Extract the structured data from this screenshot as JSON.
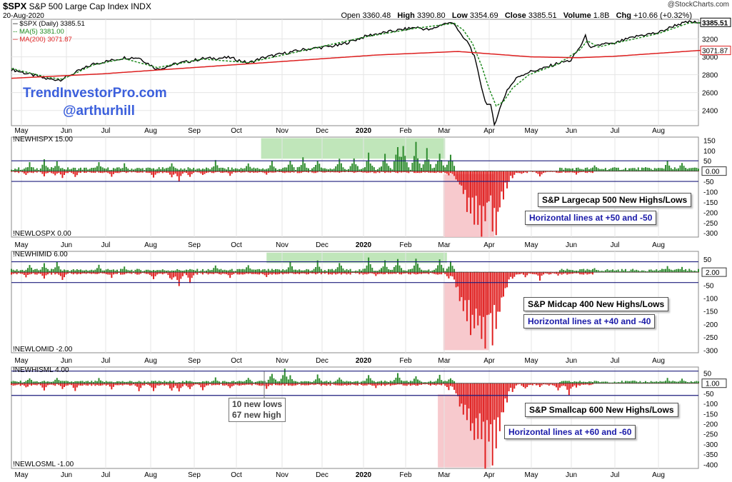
{
  "header": {
    "symbol": "$SPX",
    "name": "S&P 500 Large Cap Index",
    "exchange": "INDX",
    "date": "20-Aug-2020",
    "source": "@StockCharts.com",
    "open_label": "Open",
    "open": "3360.48",
    "high_label": "High",
    "high": "3390.80",
    "low_label": "Low",
    "low": "3354.69",
    "close_label": "Close",
    "close": "3385.51",
    "volume_label": "Volume",
    "volume": "1.8B",
    "chg_label": "Chg",
    "chg": "+10.66 (+0.32%)"
  },
  "legend": {
    "price": "$SPX (Daily) 3385.51",
    "ma5": "MA(5) 3381.00",
    "ma200": "MA(200) 3071.87"
  },
  "branding": {
    "site": "TrendInvestorPro.com",
    "handle": "@arthurhill"
  },
  "colors": {
    "price": "#000000",
    "ma5": "#1f8a1f",
    "ma200": "#dd1f1f",
    "highs_bar": "#2e8b2e",
    "lows_bar": "#e02020",
    "green_zone": "#b9e3b2",
    "red_zone": "#f6c3c8",
    "ref_line": "#1c1c7c",
    "annotation_blue": "#1a1aa8",
    "brand": "#3b5fdc"
  },
  "panel_labels": {
    "spx_highs": "!NEWHISPX 15.00",
    "spx_lows": "!NEWLOSPX 0.00",
    "mid_highs": "!NEWHIMID 6.00",
    "mid_lows": "!NEWLOMID -2.00",
    "sml_highs": "!NEWHISML 4.00",
    "sml_lows": "!NEWLOSML -1.00"
  },
  "annotations": {
    "spx_title": "S&P Largecap 500 New Highs/Lows",
    "spx_lines": "Horizontal lines at +50 and -50",
    "mid_title": "S&P Midcap 400  New Highs/Lows",
    "mid_lines": "Horizontal lines at +40 and -40",
    "sml_title": "S&P Smallcap 600  New Highs/Lows",
    "sml_lines": "Horizontal lines at +60 and -60",
    "callout_lows": "10 new lows",
    "callout_highs": "67 new high"
  },
  "chart_data": [
    {
      "type": "line",
      "x_ticks": [
        "May",
        "Jun",
        "Jul",
        "Aug",
        "Sep",
        "Oct",
        "Nov",
        "Dec",
        "2020",
        "Feb",
        "Mar",
        "Apr",
        "May",
        "Jun",
        "Jul",
        "Aug"
      ],
      "y_ticks": [
        2400,
        2600,
        2800,
        3000,
        3200
      ],
      "ylim": [
        2230,
        3420
      ],
      "last_values": {
        "price": "3385.51",
        "ma200": "3071.87"
      },
      "series": [
        {
          "name": "$SPX (Daily)",
          "key": "price",
          "anchors": [
            [
              0,
              2860
            ],
            [
              20,
              2750
            ],
            [
              27,
              2745
            ],
            [
              45,
              2920
            ],
            [
              62,
              2990
            ],
            [
              70,
              2990
            ],
            [
              80,
              2860
            ],
            [
              90,
              2920
            ],
            [
              105,
              2980
            ],
            [
              120,
              2990
            ],
            [
              130,
              2930
            ],
            [
              138,
              2990
            ],
            [
              160,
              3080
            ],
            [
              180,
              3130
            ],
            [
              196,
              3240
            ],
            [
              210,
              3290
            ],
            [
              222,
              3330
            ],
            [
              230,
              3300
            ],
            [
              237,
              3370
            ],
            [
              243,
              3380
            ],
            [
              247,
              3230
            ],
            [
              251,
              3150
            ],
            [
              254,
              3000
            ],
            [
              257,
              2750
            ],
            [
              260,
              2500
            ],
            [
              263,
              2450
            ],
            [
              265,
              2240
            ],
            [
              268,
              2420
            ],
            [
              272,
              2630
            ],
            [
              278,
              2780
            ],
            [
              284,
              2830
            ],
            [
              292,
              2870
            ],
            [
              300,
              2930
            ],
            [
              307,
              2960
            ],
            [
              312,
              3110
            ],
            [
              315,
              3230
            ],
            [
              318,
              3090
            ],
            [
              325,
              3150
            ],
            [
              330,
              3140
            ],
            [
              335,
              3180
            ],
            [
              345,
              3240
            ],
            [
              355,
              3270
            ],
            [
              365,
              3360
            ],
            [
              372,
              3390
            ],
            [
              378,
              3380
            ]
          ]
        },
        {
          "name": "MA(5)",
          "key": "ma5",
          "anchors": [
            [
              0,
              2870
            ],
            [
              20,
              2770
            ],
            [
              28,
              2750
            ],
            [
              45,
              2910
            ],
            [
              62,
              2980
            ],
            [
              80,
              2880
            ],
            [
              105,
              2975
            ],
            [
              130,
              2935
            ],
            [
              160,
              3070
            ],
            [
              196,
              3230
            ],
            [
              222,
              3320
            ],
            [
              243,
              3375
            ],
            [
              248,
              3300
            ],
            [
              253,
              3150
            ],
            [
              258,
              2900
            ],
            [
              262,
              2650
            ],
            [
              266,
              2450
            ],
            [
              270,
              2500
            ],
            [
              275,
              2650
            ],
            [
              284,
              2800
            ],
            [
              300,
              2920
            ],
            [
              312,
              3080
            ],
            [
              316,
              3180
            ],
            [
              322,
              3110
            ],
            [
              335,
              3170
            ],
            [
              355,
              3260
            ],
            [
              372,
              3380
            ],
            [
              378,
              3381
            ]
          ]
        },
        {
          "name": "MA(200)",
          "key": "ma200",
          "anchors": [
            [
              0,
              2760
            ],
            [
              50,
              2810
            ],
            [
              100,
              2880
            ],
            [
              150,
              2950
            ],
            [
              200,
              3020
            ],
            [
              245,
              3060
            ],
            [
              265,
              3030
            ],
            [
              285,
              3000
            ],
            [
              310,
              2990
            ],
            [
              330,
              3005
            ],
            [
              355,
              3040
            ],
            [
              378,
              3072
            ]
          ]
        }
      ]
    },
    {
      "type": "bar",
      "name": "S&P Largecap 500 New Highs/Lows",
      "y_ticks": [
        150,
        100,
        50,
        -50,
        -100,
        -150,
        -200,
        -250,
        -300
      ],
      "ylim": [
        -320,
        165
      ],
      "reference_lines": [
        50,
        -50
      ],
      "last_value": "0.00",
      "highs": {
        "name": "!NEWHISPX",
        "base": 12,
        "peaks": [
          [
            10,
            40
          ],
          [
            18,
            50
          ],
          [
            25,
            55
          ],
          [
            48,
            40
          ],
          [
            62,
            35
          ],
          [
            88,
            38
          ],
          [
            112,
            45
          ],
          [
            130,
            42
          ],
          [
            143,
            45
          ],
          [
            153,
            55
          ],
          [
            160,
            60
          ],
          [
            168,
            55
          ],
          [
            180,
            65
          ],
          [
            188,
            70
          ],
          [
            196,
            75
          ],
          [
            205,
            85
          ],
          [
            212,
            140
          ],
          [
            215,
            130
          ],
          [
            222,
            125
          ],
          [
            228,
            110
          ],
          [
            235,
            100
          ],
          [
            241,
            90
          ],
          [
            320,
            30
          ],
          [
            360,
            50
          ],
          [
            368,
            45
          ]
        ],
        "zero_ranges": [
          [
            244,
            300
          ]
        ]
      },
      "lows": {
        "name": "!NEWLOSPX",
        "base": -6,
        "peaks": [
          [
            8,
            -20
          ],
          [
            18,
            -22
          ],
          [
            24,
            -25
          ],
          [
            28,
            -35
          ],
          [
            35,
            -30
          ],
          [
            55,
            -25
          ],
          [
            78,
            -30
          ],
          [
            88,
            -30
          ],
          [
            92,
            -45
          ],
          [
            98,
            -30
          ],
          [
            105,
            -22
          ],
          [
            120,
            -20
          ],
          [
            140,
            -18
          ],
          [
            200,
            -10
          ],
          [
            240,
            -20
          ],
          [
            244,
            -45
          ],
          [
            246,
            -80
          ],
          [
            248,
            -120
          ],
          [
            250,
            -180
          ],
          [
            252,
            -200
          ],
          [
            254,
            -270
          ],
          [
            256,
            -220
          ],
          [
            258,
            -310
          ],
          [
            260,
            -290
          ],
          [
            262,
            -150
          ],
          [
            264,
            -250
          ],
          [
            266,
            -300
          ],
          [
            268,
            -180
          ],
          [
            270,
            -120
          ],
          [
            272,
            -80
          ],
          [
            275,
            -30
          ],
          [
            280,
            -15
          ],
          [
            290,
            -25
          ],
          [
            300,
            -10
          ],
          [
            310,
            -15
          ]
        ],
        "zero_ranges": [
          [
            320,
            378
          ]
        ]
      }
    },
    {
      "type": "bar",
      "name": "S&P Midcap 400 New Highs/Lows",
      "y_ticks": [
        50,
        -50,
        -100,
        -150,
        -200,
        -250,
        -300
      ],
      "ylim": [
        -310,
        80
      ],
      "reference_lines": [
        40,
        -40
      ],
      "last_value": "2.00",
      "highs": {
        "name": "!NEWHIMID",
        "base": 8,
        "peaks": [
          [
            10,
            30
          ],
          [
            18,
            35
          ],
          [
            25,
            38
          ],
          [
            48,
            25
          ],
          [
            62,
            22
          ],
          [
            112,
            25
          ],
          [
            130,
            30
          ],
          [
            153,
            35
          ],
          [
            168,
            40
          ],
          [
            180,
            42
          ],
          [
            196,
            50
          ],
          [
            205,
            45
          ],
          [
            212,
            55
          ],
          [
            222,
            50
          ],
          [
            235,
            45
          ],
          [
            241,
            40
          ],
          [
            320,
            15
          ],
          [
            360,
            20
          ],
          [
            368,
            18
          ]
        ],
        "zero_ranges": [
          [
            244,
            300
          ]
        ]
      },
      "lows": {
        "name": "!NEWLOMID",
        "base": -6,
        "peaks": [
          [
            8,
            -20
          ],
          [
            18,
            -25
          ],
          [
            28,
            -30
          ],
          [
            55,
            -20
          ],
          [
            78,
            -30
          ],
          [
            88,
            -35
          ],
          [
            92,
            -55
          ],
          [
            98,
            -35
          ],
          [
            120,
            -22
          ],
          [
            140,
            -20
          ],
          [
            200,
            -15
          ],
          [
            240,
            -25
          ],
          [
            244,
            -50
          ],
          [
            246,
            -100
          ],
          [
            248,
            -150
          ],
          [
            250,
            -200
          ],
          [
            252,
            -230
          ],
          [
            254,
            -260
          ],
          [
            256,
            -180
          ],
          [
            258,
            -290
          ],
          [
            260,
            -300
          ],
          [
            262,
            -200
          ],
          [
            264,
            -240
          ],
          [
            266,
            -270
          ],
          [
            268,
            -150
          ],
          [
            270,
            -100
          ],
          [
            272,
            -60
          ],
          [
            275,
            -30
          ],
          [
            282,
            -20
          ],
          [
            290,
            -30
          ],
          [
            300,
            -12
          ]
        ],
        "zero_ranges": [
          [
            320,
            378
          ]
        ]
      }
    },
    {
      "type": "bar",
      "name": "S&P Smallcap 600 New Highs/Lows",
      "y_ticks": [
        50,
        -50,
        -100,
        -150,
        -200,
        -250,
        -300,
        -350,
        -400
      ],
      "ylim": [
        -420,
        80
      ],
      "reference_lines": [
        60,
        -60
      ],
      "last_value": "1.00",
      "highs": {
        "name": "!NEWHISML",
        "base": 8,
        "peaks": [
          [
            10,
            25
          ],
          [
            25,
            30
          ],
          [
            48,
            22
          ],
          [
            112,
            25
          ],
          [
            130,
            30
          ],
          [
            143,
            55
          ],
          [
            150,
            67
          ],
          [
            153,
            40
          ],
          [
            168,
            38
          ],
          [
            180,
            35
          ],
          [
            196,
            40
          ],
          [
            212,
            45
          ],
          [
            222,
            40
          ],
          [
            235,
            35
          ],
          [
            241,
            30
          ],
          [
            320,
            10
          ],
          [
            360,
            25
          ],
          [
            368,
            20
          ]
        ],
        "zero_ranges": [
          [
            244,
            300
          ]
        ]
      },
      "lows": {
        "name": "!NEWLOSML",
        "base": -8,
        "peaks": [
          [
            8,
            -25
          ],
          [
            18,
            -40
          ],
          [
            28,
            -30
          ],
          [
            35,
            -35
          ],
          [
            55,
            -30
          ],
          [
            70,
            -35
          ],
          [
            78,
            -40
          ],
          [
            88,
            -40
          ],
          [
            92,
            -45
          ],
          [
            98,
            -35
          ],
          [
            105,
            -30
          ],
          [
            120,
            -28
          ],
          [
            140,
            -25
          ],
          [
            150,
            -10
          ],
          [
            200,
            -20
          ],
          [
            240,
            -30
          ],
          [
            244,
            -60
          ],
          [
            246,
            -110
          ],
          [
            248,
            -160
          ],
          [
            250,
            -200
          ],
          [
            252,
            -260
          ],
          [
            254,
            -300
          ],
          [
            256,
            -250
          ],
          [
            258,
            -330
          ],
          [
            260,
            -410
          ],
          [
            262,
            -300
          ],
          [
            264,
            -380
          ],
          [
            266,
            -330
          ],
          [
            268,
            -250
          ],
          [
            270,
            -150
          ],
          [
            272,
            -90
          ],
          [
            275,
            -45
          ],
          [
            282,
            -30
          ],
          [
            290,
            -20
          ],
          [
            300,
            -40
          ],
          [
            306,
            -50
          ],
          [
            310,
            -20
          ]
        ],
        "zero_ranges": [
          [
            320,
            378
          ]
        ]
      }
    }
  ]
}
